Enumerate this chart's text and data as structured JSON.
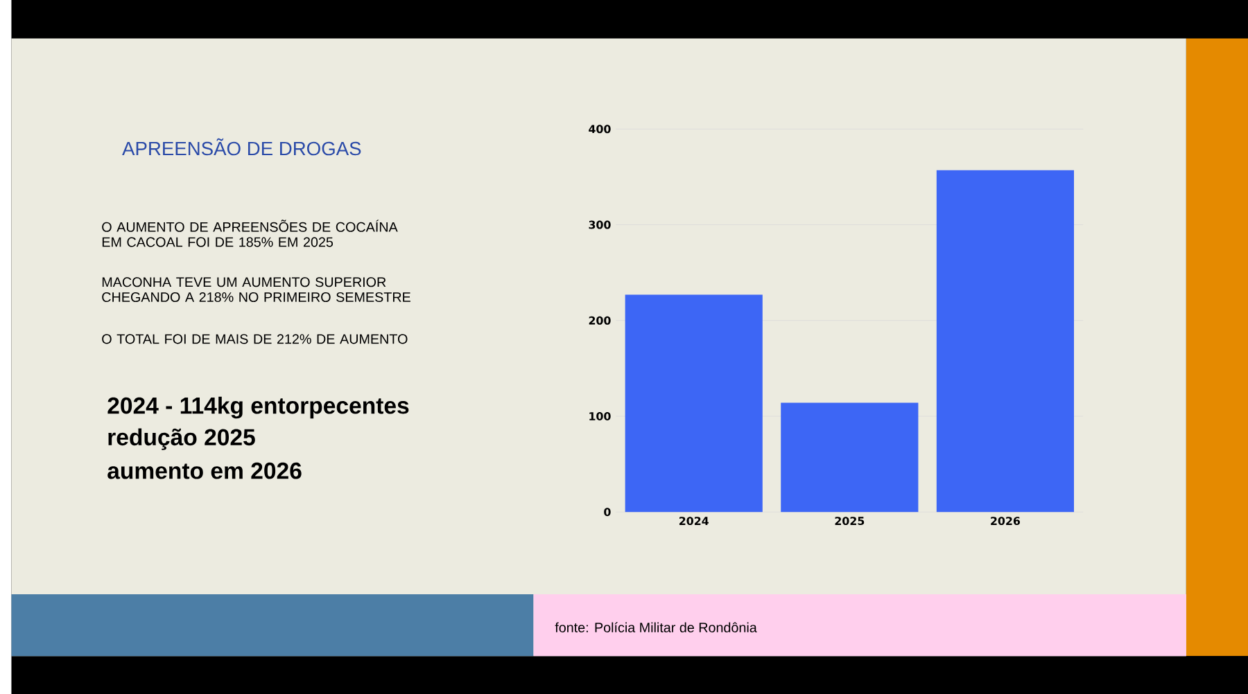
{
  "chart_data": {
    "type": "bar",
    "title": "APREENSÃO DE DROGAS",
    "categories": [
      "2024",
      "2025",
      "2026"
    ],
    "values": [
      227,
      114,
      357
    ],
    "color": "#3d66f5",
    "ylim": [
      0,
      400
    ],
    "yticks": [
      0,
      100,
      200,
      300,
      400
    ],
    "grid": "y",
    "annotations": [
      "O AUMENTO DE APREENSÕES DE COCAÍNA EM CACOAL FOI DE 185% EM 2025",
      "MACONHA TEVE UM AUMENTO SUPERIOR CHEGANDO A 218% NO PRIMEIRO SEMESTRE",
      "O TOTAL FOI DE MAIS DE 212% DE AUMENTO",
      "**2024 - 114kg entorpecentes**",
      "**redução 2025**",
      "**aumento em 2026**",
      "fonte: Polícia Militar de Rondônia"
    ]
  }
}
